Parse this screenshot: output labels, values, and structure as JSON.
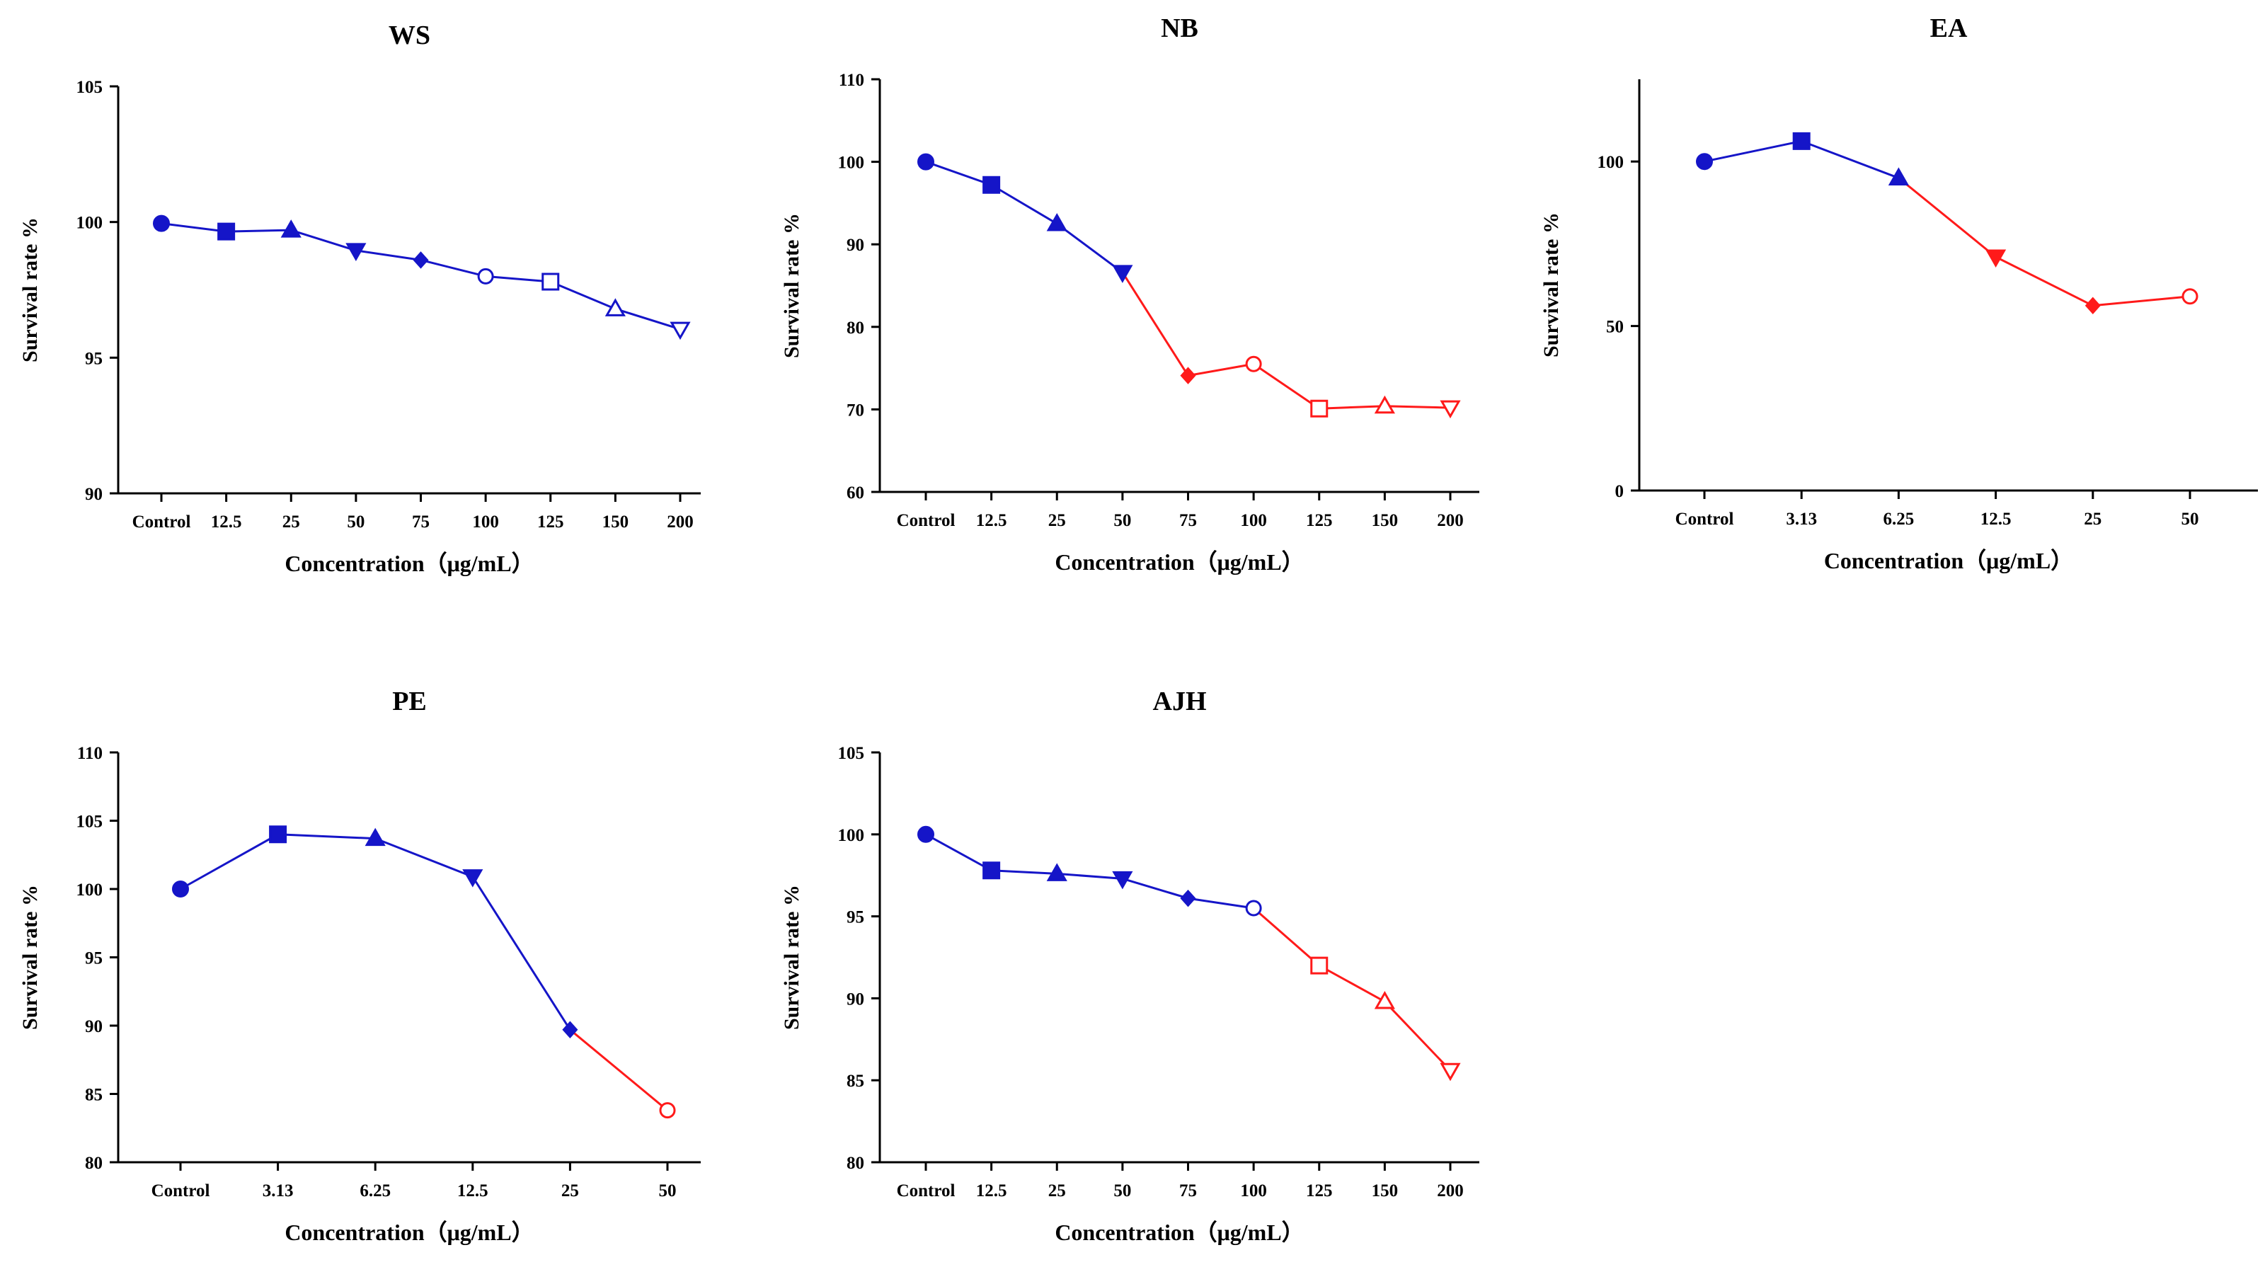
{
  "chart_data": [
    {
      "type": "line",
      "title": "WS",
      "xlabel": "Concentration（μg/mL）",
      "ylabel": "Survival rate %",
      "categories": [
        "Control",
        "12.5",
        "25",
        "50",
        "75",
        "100",
        "125",
        "150",
        "200"
      ],
      "values": [
        99.95,
        99.65,
        99.7,
        98.95,
        98.6,
        98.0,
        97.8,
        96.8,
        96.05
      ],
      "markers": [
        "circle-filled",
        "square-filled",
        "triangle-up-filled",
        "triangle-down-filled",
        "diamond-filled",
        "circle-open",
        "square-open",
        "triangle-up-open",
        "triangle-down-open"
      ],
      "colors": [
        "#1515c8",
        "#1515c8",
        "#1515c8",
        "#1515c8",
        "#1515c8",
        "#1515c8",
        "#1515c8",
        "#1515c8",
        "#1515c8"
      ],
      "ylim": [
        90,
        105
      ],
      "yticks": [
        90,
        95,
        100,
        105
      ]
    },
    {
      "type": "line",
      "title": "NB",
      "xlabel": "Concentration（μg/mL）",
      "ylabel": "Survival rate %",
      "categories": [
        "Control",
        "12.5",
        "25",
        "50",
        "75",
        "100",
        "125",
        "150",
        "200"
      ],
      "values": [
        100.0,
        97.2,
        92.5,
        86.6,
        74.1,
        75.5,
        70.1,
        70.4,
        70.2
      ],
      "markers": [
        "circle-filled",
        "square-filled",
        "triangle-up-filled",
        "triangle-down-filled",
        "diamond-filled",
        "circle-open",
        "square-open",
        "triangle-up-open",
        "triangle-down-open"
      ],
      "colors": [
        "#1515c8",
        "#1515c8",
        "#1515c8",
        "#1515c8",
        "#ff1a1a",
        "#ff1a1a",
        "#ff1a1a",
        "#ff1a1a",
        "#ff1a1a"
      ],
      "ylim": [
        60,
        110
      ],
      "yticks": [
        60,
        70,
        80,
        90,
        100,
        110
      ]
    },
    {
      "type": "line",
      "title": "EA",
      "xlabel": "Concentration（μg/mL）",
      "ylabel": "Survival rate %",
      "categories": [
        "Control",
        "3.13",
        "6.25",
        "12.5",
        "25",
        "50"
      ],
      "values": [
        100.0,
        106.2,
        95.0,
        71.0,
        56.2,
        59.0
      ],
      "markers": [
        "circle-filled",
        "square-filled",
        "triangle-up-filled",
        "triangle-down-filled",
        "diamond-filled",
        "circle-open"
      ],
      "colors": [
        "#1515c8",
        "#1515c8",
        "#1515c8",
        "#ff1a1a",
        "#ff1a1a",
        "#ff1a1a"
      ],
      "ylim": [
        0,
        125
      ],
      "yticks": [
        0,
        50,
        100
      ]
    },
    {
      "type": "line",
      "title": "PE",
      "xlabel": "Concentration（μg/mL）",
      "ylabel": "Survival rate %",
      "categories": [
        "Control",
        "3.13",
        "6.25",
        "12.5",
        "25",
        "50"
      ],
      "values": [
        100.0,
        104.0,
        103.7,
        100.9,
        89.7,
        83.8
      ],
      "markers": [
        "circle-filled",
        "square-filled",
        "triangle-up-filled",
        "triangle-down-filled",
        "diamond-filled",
        "circle-open"
      ],
      "colors": [
        "#1515c8",
        "#1515c8",
        "#1515c8",
        "#1515c8",
        "#1515c8",
        "#ff1a1a"
      ],
      "ylim": [
        80,
        110
      ],
      "yticks": [
        80,
        85,
        90,
        95,
        100,
        105,
        110
      ]
    },
    {
      "type": "line",
      "title": "AJH",
      "xlabel": "Concentration（μg/mL）",
      "ylabel": "Survival rate %",
      "categories": [
        "Control",
        "12.5",
        "25",
        "50",
        "75",
        "100",
        "125",
        "150",
        "200"
      ],
      "values": [
        100.0,
        97.8,
        97.6,
        97.3,
        96.1,
        95.5,
        92.0,
        89.8,
        85.6
      ],
      "markers": [
        "circle-filled",
        "square-filled",
        "triangle-up-filled",
        "triangle-down-filled",
        "diamond-filled",
        "circle-open",
        "square-open",
        "triangle-up-open",
        "triangle-down-open"
      ],
      "colors": [
        "#1515c8",
        "#1515c8",
        "#1515c8",
        "#1515c8",
        "#1515c8",
        "#1515c8",
        "#ff1a1a",
        "#ff1a1a",
        "#ff1a1a"
      ],
      "ylim": [
        80,
        105
      ],
      "yticks": [
        80,
        85,
        90,
        95,
        100,
        105
      ]
    }
  ]
}
